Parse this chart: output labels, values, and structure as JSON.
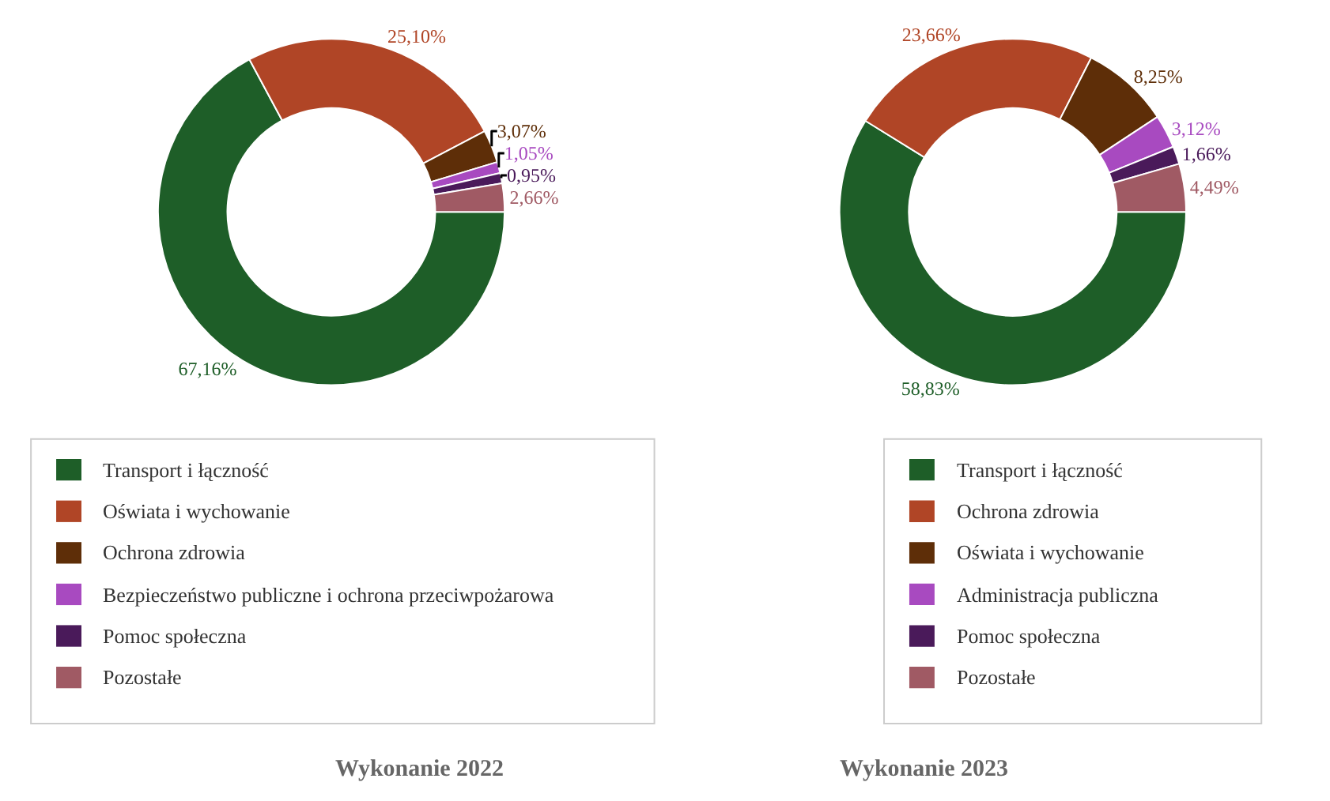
{
  "chart_data": [
    {
      "type": "donut",
      "title": "Wykonanie 2022",
      "legend": "bottom",
      "categories": [
        "Transport i łączność",
        "Oświata i wychowanie",
        "Ochrona zdrowia",
        "Bezpieczeństwo publiczne i ochrona przeciwpożarowa",
        "Pomoc społeczna",
        "Pozostałe"
      ],
      "values": [
        67.16,
        25.1,
        3.07,
        1.05,
        0.95,
        2.66
      ],
      "value_labels": [
        "67,16%",
        "25,10%",
        "3,07%",
        "1,05%",
        "0,95%",
        "2,66%"
      ],
      "colors": [
        "#1e5e28",
        "#b04526",
        "#5e2e08",
        "#a84ac0",
        "#4a1a5a",
        "#a05a64"
      ]
    },
    {
      "type": "donut",
      "title": "Wykonanie 2023",
      "legend": "bottom",
      "categories": [
        "Transport i łączność",
        "Ochrona zdrowia",
        "Oświata i wychowanie",
        "Administracja publiczna",
        "Pomoc społeczna",
        "Pozostałe"
      ],
      "values": [
        58.83,
        23.66,
        8.25,
        3.12,
        1.66,
        4.49
      ],
      "value_labels": [
        "58,83%",
        "23,66%",
        "8,25%",
        "3,12%",
        "1,66%",
        "4,49%"
      ],
      "colors": [
        "#1e5e28",
        "#b04526",
        "#5e2e08",
        "#a84ac0",
        "#4a1a5a",
        "#a05a64"
      ]
    }
  ]
}
